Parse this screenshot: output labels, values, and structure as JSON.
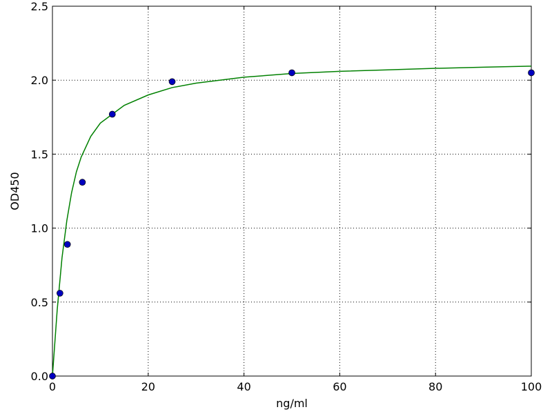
{
  "chart_data": {
    "type": "scatter",
    "xlabel": "ng/ml",
    "ylabel": "OD450",
    "xlim": [
      0,
      100
    ],
    "ylim": [
      0,
      2.5
    ],
    "xticks": [
      0,
      20,
      40,
      60,
      80,
      100
    ],
    "yticks": [
      {
        "value": 0,
        "label": "0.0"
      },
      0.5,
      {
        "value": 1,
        "label": "1.0"
      },
      1.5,
      {
        "value": 2,
        "label": "2.0"
      },
      2.5
    ],
    "grid": true,
    "series": [
      {
        "type": "line",
        "color": "#008000",
        "x": [
          0,
          1,
          2,
          3,
          4,
          5,
          6,
          8,
          10,
          12.5,
          15,
          20,
          25,
          30,
          40,
          50,
          60,
          70,
          80,
          90,
          100
        ],
        "values": [
          0,
          0.45,
          0.8,
          1.05,
          1.24,
          1.38,
          1.48,
          1.62,
          1.71,
          1.77,
          1.83,
          1.9,
          1.95,
          1.98,
          2.02,
          2.045,
          2.06,
          2.07,
          2.08,
          2.088,
          2.095
        ]
      },
      {
        "type": "scatter",
        "color": "#0000bf",
        "x": [
          0,
          1.5625,
          3.125,
          6.25,
          12.5,
          25,
          50,
          100
        ],
        "values": [
          0,
          0.56,
          0.89,
          1.31,
          1.77,
          1.99,
          2.05,
          2.05
        ]
      }
    ]
  }
}
